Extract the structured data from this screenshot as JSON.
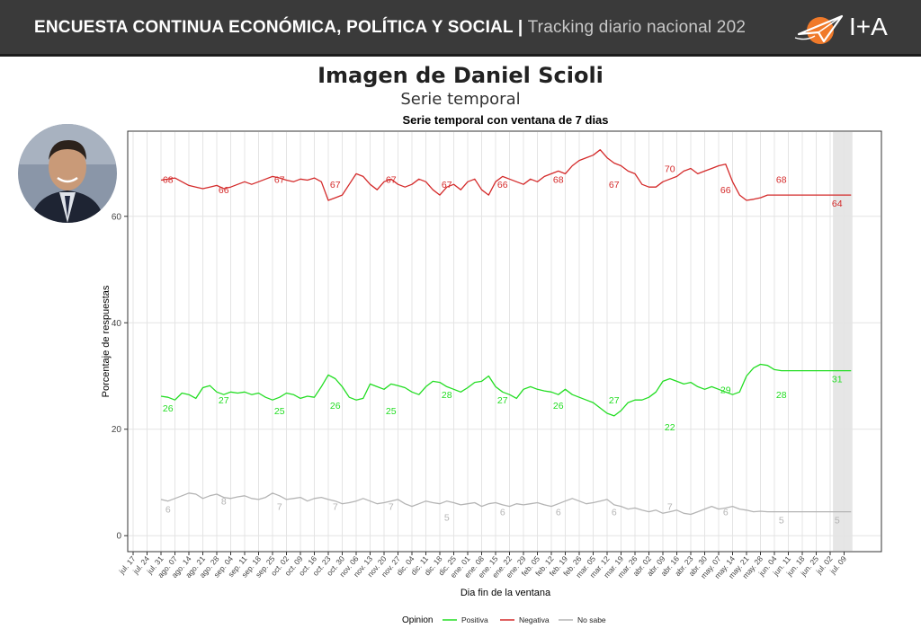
{
  "header": {
    "title": "ENCUESTA CONTINUA ECONÓMICA, POLÍTICA Y SOCIAL |",
    "subtitle": "Tracking diario nacional 202",
    "logo_text": "I+A"
  },
  "page": {
    "title": "Imagen de Daniel Scioli",
    "subtitle": "Serie temporal"
  },
  "colors": {
    "positiva": "#22dd22",
    "negativa": "#d42a2a",
    "no_sabe": "#b4b4b4",
    "header_bg": "#3a3a3a"
  },
  "chart_data": {
    "type": "line",
    "title": "Serie temporal con ventana de 7 dias",
    "xlabel": "Dia fin de la ventana",
    "ylabel": "Porcentaje de respuestas",
    "ylim": [
      -3,
      76
    ],
    "yticks": [
      0,
      20,
      40,
      60
    ],
    "grid": true,
    "legend": {
      "title": "Opinion",
      "position": "bottom"
    },
    "x_ticks": [
      "jul. 17",
      "jul. 24",
      "jul. 31",
      "ago. 07",
      "ago. 14",
      "ago. 21",
      "ago. 28",
      "sep. 04",
      "sep. 11",
      "sep. 18",
      "sep. 25",
      "oct. 02",
      "oct. 09",
      "oct. 16",
      "oct. 23",
      "oct. 30",
      "nov. 06",
      "nov. 13",
      "nov. 20",
      "nov. 27",
      "dic. 04",
      "dic. 11",
      "dic. 18",
      "dic. 25",
      "ene. 01",
      "ene. 08",
      "ene. 15",
      "ene. 22",
      "ene. 29",
      "feb. 05",
      "feb. 12",
      "feb. 19",
      "feb. 26",
      "mar. 05",
      "mar. 12",
      "mar. 19",
      "mar. 26",
      "abr. 02",
      "abr. 09",
      "abr. 16",
      "abr. 23",
      "abr. 30",
      "may. 07",
      "may. 14",
      "may. 21",
      "may. 28",
      "jun. 04",
      "jun. 11",
      "jun. 18",
      "jun. 25",
      "jul. 02",
      "jul. 09"
    ],
    "highlight_range": [
      50.2,
      51.6
    ],
    "series": [
      {
        "name": "Positiva",
        "color": "#22dd22",
        "x": [
          2.0,
          2.5,
          3.0,
          3.5,
          4.0,
          4.5,
          5.0,
          5.5,
          6.0,
          6.5,
          7.0,
          7.5,
          8.0,
          8.5,
          9.0,
          9.5,
          10.0,
          10.5,
          11.0,
          11.5,
          12.0,
          12.5,
          13.0,
          13.5,
          14.0,
          14.5,
          15.0,
          15.5,
          16.0,
          16.5,
          17.0,
          17.5,
          18.0,
          18.5,
          19.0,
          19.5,
          20.0,
          20.5,
          21.0,
          21.5,
          22.0,
          22.5,
          23.0,
          23.5,
          24.0,
          24.5,
          25.0,
          25.5,
          26.0,
          26.5,
          27.0,
          27.5,
          28.0,
          28.5,
          29.0,
          29.5,
          30.0,
          30.5,
          31.0,
          31.5,
          32.0,
          32.5,
          33.0,
          33.5,
          34.0,
          34.5,
          35.0,
          35.5,
          36.0,
          36.5,
          37.0,
          37.5,
          38.0,
          38.5,
          39.0,
          39.5,
          40.0,
          40.5,
          41.0,
          41.5,
          42.0,
          42.5,
          43.0,
          43.5,
          44.0,
          44.5,
          45.0,
          45.5,
          46.0,
          46.5,
          47.0,
          47.5,
          48.0,
          48.5,
          49.0,
          49.5,
          50.0,
          50.5,
          51.0,
          51.5
        ],
        "values": [
          26.2,
          26.0,
          25.5,
          26.8,
          26.5,
          25.8,
          27.8,
          28.2,
          27.0,
          26.5,
          27.0,
          26.8,
          27.0,
          26.5,
          26.8,
          26.0,
          25.5,
          26.0,
          26.8,
          26.5,
          25.8,
          26.2,
          26.0,
          28.0,
          30.2,
          29.5,
          28.0,
          26.0,
          25.5,
          25.8,
          28.5,
          28.0,
          27.5,
          28.5,
          28.2,
          27.8,
          27.0,
          26.5,
          28.0,
          29.0,
          28.8,
          28.0,
          27.5,
          27.0,
          27.8,
          28.8,
          29.0,
          30.0,
          28.0,
          27.0,
          26.5,
          25.8,
          27.5,
          28.0,
          27.5,
          27.2,
          27.0,
          26.5,
          27.5,
          26.5,
          26.0,
          25.5,
          25.0,
          24.0,
          23.0,
          22.5,
          23.5,
          25.0,
          25.5,
          25.5,
          26.0,
          27.0,
          29.0,
          29.5,
          29.0,
          28.5,
          28.8,
          28.0,
          27.5,
          28.0,
          27.5,
          27.0,
          26.5,
          27.0,
          30.0,
          31.5,
          32.2,
          32.0,
          31.2,
          31.0,
          31.0,
          31.0,
          31.0,
          31.0,
          31.0,
          31.0,
          31.0,
          31.0,
          31.0,
          31.0
        ]
      },
      {
        "name": "Negativa",
        "color": "#d42a2a",
        "x": [
          2.0,
          2.5,
          3.0,
          3.5,
          4.0,
          4.5,
          5.0,
          5.5,
          6.0,
          6.5,
          7.0,
          7.5,
          8.0,
          8.5,
          9.0,
          9.5,
          10.0,
          10.5,
          11.0,
          11.5,
          12.0,
          12.5,
          13.0,
          13.5,
          14.0,
          14.5,
          15.0,
          15.5,
          16.0,
          16.5,
          17.0,
          17.5,
          18.0,
          18.5,
          19.0,
          19.5,
          20.0,
          20.5,
          21.0,
          21.5,
          22.0,
          22.5,
          23.0,
          23.5,
          24.0,
          24.5,
          25.0,
          25.5,
          26.0,
          26.5,
          27.0,
          27.5,
          28.0,
          28.5,
          29.0,
          29.5,
          30.0,
          30.5,
          31.0,
          31.5,
          32.0,
          32.5,
          33.0,
          33.5,
          34.0,
          34.5,
          35.0,
          35.5,
          36.0,
          36.5,
          37.0,
          37.5,
          38.0,
          38.5,
          39.0,
          39.5,
          40.0,
          40.5,
          41.0,
          41.5,
          42.0,
          42.5,
          43.0,
          43.5,
          44.0,
          44.5,
          45.0,
          45.5,
          46.0,
          46.5,
          47.0,
          47.5,
          48.0,
          48.5,
          49.0,
          49.5,
          50.0,
          50.5,
          51.0,
          51.5
        ],
        "values": [
          66.8,
          67.0,
          67.2,
          66.5,
          65.8,
          65.5,
          65.2,
          65.5,
          65.8,
          65.2,
          65.5,
          66.0,
          66.5,
          66.0,
          66.5,
          67.0,
          67.5,
          67.2,
          66.8,
          66.5,
          67.0,
          66.8,
          67.2,
          66.5,
          63.0,
          63.5,
          64.0,
          66.0,
          68.0,
          67.5,
          66.0,
          65.0,
          66.5,
          67.0,
          66.0,
          65.5,
          66.0,
          67.0,
          66.5,
          65.0,
          64.0,
          65.5,
          66.0,
          65.0,
          66.5,
          67.0,
          65.0,
          64.0,
          66.5,
          67.5,
          67.0,
          66.5,
          66.0,
          67.0,
          66.5,
          67.5,
          68.0,
          68.5,
          68.0,
          69.5,
          70.5,
          71.0,
          71.5,
          72.5,
          71.0,
          70.0,
          69.5,
          68.5,
          68.0,
          66.0,
          65.5,
          65.5,
          66.5,
          67.0,
          67.5,
          68.5,
          69.0,
          68.0,
          68.5,
          69.0,
          69.5,
          69.8,
          66.5,
          64.0,
          63.0,
          63.2,
          63.5,
          64.0,
          64.0,
          64.0,
          64.0,
          64.0,
          64.0,
          64.0,
          64.0,
          64.0,
          64.0,
          64.0,
          64.0,
          64.0
        ]
      },
      {
        "name": "No sabe",
        "color": "#b4b4b4",
        "x": [
          2.0,
          2.5,
          3.0,
          3.5,
          4.0,
          4.5,
          5.0,
          5.5,
          6.0,
          6.5,
          7.0,
          7.5,
          8.0,
          8.5,
          9.0,
          9.5,
          10.0,
          10.5,
          11.0,
          11.5,
          12.0,
          12.5,
          13.0,
          13.5,
          14.0,
          14.5,
          15.0,
          15.5,
          16.0,
          16.5,
          17.0,
          17.5,
          18.0,
          18.5,
          19.0,
          19.5,
          20.0,
          20.5,
          21.0,
          21.5,
          22.0,
          22.5,
          23.0,
          23.5,
          24.0,
          24.5,
          25.0,
          25.5,
          26.0,
          26.5,
          27.0,
          27.5,
          28.0,
          28.5,
          29.0,
          29.5,
          30.0,
          30.5,
          31.0,
          31.5,
          32.0,
          32.5,
          33.0,
          33.5,
          34.0,
          34.5,
          35.0,
          35.5,
          36.0,
          36.5,
          37.0,
          37.5,
          38.0,
          38.5,
          39.0,
          39.5,
          40.0,
          40.5,
          41.0,
          41.5,
          42.0,
          42.5,
          43.0,
          43.5,
          44.0,
          44.5,
          45.0,
          45.5,
          46.0,
          46.5,
          47.0,
          47.5,
          48.0,
          48.5,
          49.0,
          49.5,
          50.0,
          50.5,
          51.0,
          51.5
        ],
        "values": [
          6.8,
          6.5,
          7.0,
          7.5,
          8.0,
          7.8,
          7.0,
          7.5,
          7.8,
          7.2,
          7.0,
          7.3,
          7.5,
          7.0,
          6.8,
          7.2,
          8.0,
          7.5,
          6.8,
          7.0,
          7.2,
          6.5,
          7.0,
          7.2,
          6.8,
          6.5,
          6.0,
          6.2,
          6.5,
          7.0,
          6.5,
          6.0,
          6.2,
          6.5,
          6.8,
          6.0,
          5.5,
          6.0,
          6.5,
          6.2,
          6.0,
          6.5,
          6.2,
          5.8,
          6.0,
          6.2,
          5.5,
          6.0,
          6.2,
          5.8,
          5.5,
          6.0,
          5.8,
          6.0,
          6.2,
          5.8,
          5.5,
          6.0,
          6.5,
          7.0,
          6.5,
          6.0,
          6.2,
          6.5,
          6.8,
          5.8,
          5.5,
          5.0,
          5.2,
          4.8,
          4.5,
          4.8,
          4.2,
          4.5,
          4.8,
          4.2,
          4.0,
          4.5,
          5.0,
          5.5,
          5.0,
          5.2,
          5.5,
          5.0,
          4.8,
          4.5,
          4.6,
          4.5,
          4.5,
          4.5,
          4.5,
          4.5,
          4.5,
          4.5,
          4.5,
          4.5,
          4.5,
          4.5,
          4.5,
          4.5
        ]
      }
    ],
    "data_labels": [
      {
        "series": "Negativa",
        "x": 2.5,
        "y": 67,
        "label": "68"
      },
      {
        "series": "Negativa",
        "x": 6.5,
        "y": 65,
        "label": "66"
      },
      {
        "series": "Negativa",
        "x": 10.5,
        "y": 67,
        "label": "67"
      },
      {
        "series": "Negativa",
        "x": 14.5,
        "y": 66,
        "label": "67"
      },
      {
        "series": "Negativa",
        "x": 18.5,
        "y": 67,
        "label": "67"
      },
      {
        "series": "Negativa",
        "x": 22.5,
        "y": 66,
        "label": "67"
      },
      {
        "series": "Negativa",
        "x": 26.5,
        "y": 66,
        "label": "66"
      },
      {
        "series": "Negativa",
        "x": 30.5,
        "y": 67,
        "label": "68"
      },
      {
        "series": "Negativa",
        "x": 34.5,
        "y": 66,
        "label": "67"
      },
      {
        "series": "Negativa",
        "x": 38.5,
        "y": 69,
        "label": "70"
      },
      {
        "series": "Negativa",
        "x": 42.5,
        "y": 65,
        "label": "66"
      },
      {
        "series": "Negativa",
        "x": 46.5,
        "y": 67,
        "label": "68"
      },
      {
        "series": "Negativa",
        "x": 50.5,
        "y": 62.5,
        "label": "64"
      },
      {
        "series": "Positiva",
        "x": 2.5,
        "y": 24,
        "label": "26"
      },
      {
        "series": "Positiva",
        "x": 6.5,
        "y": 25.5,
        "label": "27"
      },
      {
        "series": "Positiva",
        "x": 10.5,
        "y": 23.5,
        "label": "25"
      },
      {
        "series": "Positiva",
        "x": 14.5,
        "y": 24.5,
        "label": "26"
      },
      {
        "series": "Positiva",
        "x": 18.5,
        "y": 23.5,
        "label": "25"
      },
      {
        "series": "Positiva",
        "x": 22.5,
        "y": 26.5,
        "label": "28"
      },
      {
        "series": "Positiva",
        "x": 26.5,
        "y": 25.5,
        "label": "27"
      },
      {
        "series": "Positiva",
        "x": 30.5,
        "y": 24.5,
        "label": "26"
      },
      {
        "series": "Positiva",
        "x": 34.5,
        "y": 25.5,
        "label": "27"
      },
      {
        "series": "Positiva",
        "x": 38.5,
        "y": 20.5,
        "label": "22"
      },
      {
        "series": "Positiva",
        "x": 42.5,
        "y": 27.5,
        "label": "29"
      },
      {
        "series": "Positiva",
        "x": 46.5,
        "y": 26.5,
        "label": "28"
      },
      {
        "series": "Positiva",
        "x": 50.5,
        "y": 29.5,
        "label": "31"
      },
      {
        "series": "No sabe",
        "x": 2.5,
        "y": 5,
        "label": "6"
      },
      {
        "series": "No sabe",
        "x": 6.5,
        "y": 6.5,
        "label": "8"
      },
      {
        "series": "No sabe",
        "x": 10.5,
        "y": 5.5,
        "label": "7"
      },
      {
        "series": "No sabe",
        "x": 14.5,
        "y": 5.5,
        "label": "7"
      },
      {
        "series": "No sabe",
        "x": 18.5,
        "y": 5.5,
        "label": "7"
      },
      {
        "series": "No sabe",
        "x": 22.5,
        "y": 3.5,
        "label": "5"
      },
      {
        "series": "No sabe",
        "x": 26.5,
        "y": 4.5,
        "label": "6"
      },
      {
        "series": "No sabe",
        "x": 30.5,
        "y": 4.5,
        "label": "6"
      },
      {
        "series": "No sabe",
        "x": 34.5,
        "y": 4.5,
        "label": "6"
      },
      {
        "series": "No sabe",
        "x": 38.5,
        "y": 5.5,
        "label": "7"
      },
      {
        "series": "No sabe",
        "x": 42.5,
        "y": 4.5,
        "label": "6"
      },
      {
        "series": "No sabe",
        "x": 46.5,
        "y": 3.0,
        "label": "5"
      },
      {
        "series": "No sabe",
        "x": 50.5,
        "y": 3.0,
        "label": "5"
      }
    ]
  }
}
